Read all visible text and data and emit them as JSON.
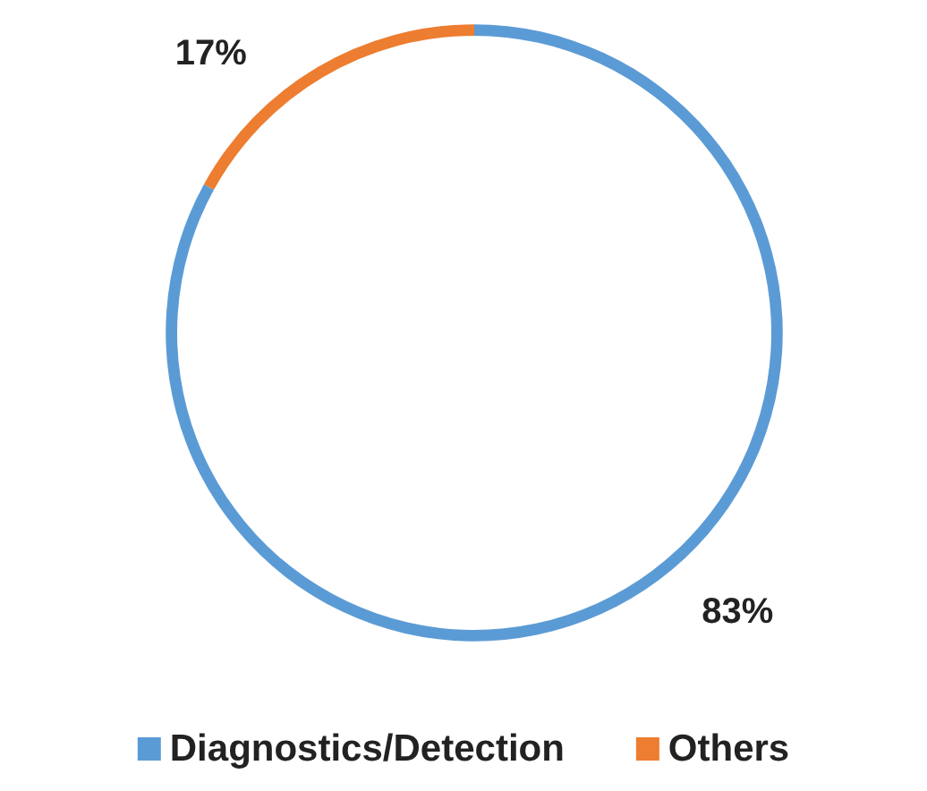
{
  "chart_data": {
    "type": "donut",
    "categories": [
      "Diagnostics/Detection",
      "Others"
    ],
    "values": [
      83,
      17
    ],
    "colors": [
      "#5b9bd5",
      "#ed7d31"
    ],
    "value_labels": [
      "83%",
      "17%"
    ],
    "legend": "bottom"
  }
}
